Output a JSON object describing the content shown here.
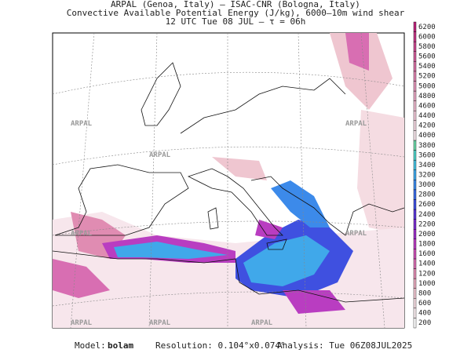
{
  "header": {
    "line1": "ARPAL (Genoa, Italy)  –  ISAC-CNR (Bologna, Italy)",
    "line2": "Convective Available Potential Energy (J/kg), 6000–10m wind shear",
    "line3": "12 UTC Tue 08 JUL  –  τ = 06h"
  },
  "watermark": "ARPAL",
  "colorbar": {
    "values": [
      200,
      400,
      600,
      800,
      1000,
      1200,
      1400,
      1600,
      1800,
      2000,
      2200,
      2400,
      2600,
      2800,
      3000,
      3200,
      3400,
      3600,
      3800,
      4000,
      4200,
      4400,
      4600,
      4800,
      5000,
      5200,
      5400,
      5600,
      5800,
      6000,
      6200
    ],
    "colors": [
      "#ffffff",
      "#fbeef1",
      "#f5dce2",
      "#efc6d0",
      "#e7abbd",
      "#e08cb2",
      "#d86eb2",
      "#cc50b6",
      "#b93dc1",
      "#9b30c9",
      "#7b2dcf",
      "#5b38d8",
      "#3f50e0",
      "#3a6be6",
      "#3c8aea",
      "#40a8ea",
      "#46c1e0",
      "#50d1c8",
      "#6cd7a8",
      "#f7e6ec",
      "#f3d6e0",
      "#efc7d6",
      "#ebb7cc",
      "#e6a6c2",
      "#e195b8",
      "#dc83ae",
      "#d670a4",
      "#d05d9a",
      "#ca4a90",
      "#c43786",
      "#be247c"
    ]
  },
  "footer": {
    "model_label": "Model:",
    "model": "bolam",
    "resolution": "Resolution: 0.104°x0.074°",
    "analysis": "Analysis: Tue 06Z08JUL2025"
  }
}
